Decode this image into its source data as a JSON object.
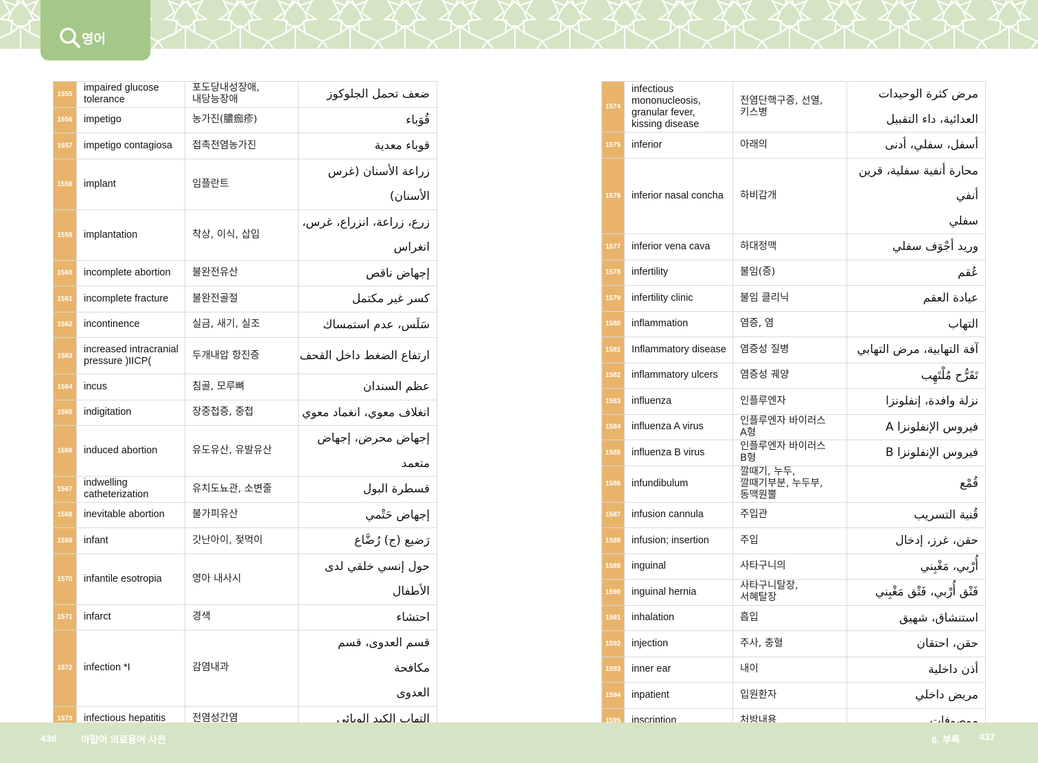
{
  "header": {
    "tab_label": "영어",
    "icon": "search-icon",
    "accent": "#a4c888",
    "pattern_bg": "#d4e4c4"
  },
  "colors": {
    "number_bg": "#e8b46c",
    "border": "#d9d9d9"
  },
  "left_table": [
    {
      "num": "1555",
      "en": "impaired glucose\ntolerance",
      "ko": "포도당내성장애,\n내당능장애",
      "ar": "ضعف تحمل الجلوكوز"
    },
    {
      "num": "1556",
      "en": "impetigo",
      "ko": "농가진(膿痂疹)",
      "ar": "قُوَباء"
    },
    {
      "num": "1557",
      "en": "impetigo contagiosa",
      "ko": "접촉전염농가진",
      "ar": "قوباء معدية"
    },
    {
      "num": "1558",
      "en": "implant",
      "ko": "임플란트",
      "ar": "زراعة الأسنان (غرس\nالأسنان)"
    },
    {
      "num": "1559",
      "en": "implantation",
      "ko": "착상, 이식, 삽입",
      "ar": "زرع، زراعة، انزراع، غرس،\nانغراس"
    },
    {
      "num": "1560",
      "en": "incomplete abortion",
      "ko": "불완전유산",
      "ar": "إجهاض ناقص"
    },
    {
      "num": "1561",
      "en": "incomplete fracture",
      "ko": "불완전골절",
      "ar": "كسر غير مكتمل"
    },
    {
      "num": "1562",
      "en": "incontinence",
      "ko": "실금, 새기, 실조",
      "ar": "سَلَس، عدم استمساك"
    },
    {
      "num": "1563",
      "en": "increased intracranial\npressure )IICP(",
      "ko": "두개내압 항진증",
      "ar": "ارتفاع الضغط داخل القحف"
    },
    {
      "num": "1564",
      "en": "incus",
      "ko": "침골, 모루뼈",
      "ar": "عظم السندان"
    },
    {
      "num": "1565",
      "en": "indigitation",
      "ko": "장중첩증, 중첩",
      "ar": "انغلاف معوي، انغماد معوي"
    },
    {
      "num": "1566",
      "en": "induced abortion",
      "ko": "유도유산, 유발유산",
      "ar": "إجهاض محرض، إجهاض\nمتعمد"
    },
    {
      "num": "1567",
      "en": "indwelling\ncatheterization",
      "ko": "유치도뇨관, 소변줄",
      "ar": "قسطرة البول"
    },
    {
      "num": "1568",
      "en": "inevitable abortion",
      "ko": "불가피유산",
      "ar": "إجهاض حَتْمي"
    },
    {
      "num": "1569",
      "en": "infant",
      "ko": "갓난아이, 젖먹이",
      "ar": "رَضيع (ج) رُضَّاع"
    },
    {
      "num": "1570",
      "en": "infantile esotropia",
      "ko": "영아 내사시",
      "ar": "حول إنسي خلقي لدى\nالأطفال"
    },
    {
      "num": "1571",
      "en": "infarct",
      "ko": "경색",
      "ar": "احتشاء"
    },
    {
      "num": "1572",
      "en": "infection *I",
      "ko": "감염내과",
      "ar": "قسم العدوى، قسم مكافحة\nالعدوى"
    },
    {
      "num": "1573",
      "en": "infectious hepatitis",
      "ko": "전염성간염",
      "ar": "التهاب الكبد الوبائي"
    }
  ],
  "right_table": [
    {
      "num": "1574",
      "en": "infectious\nmononucleosis,\ngranular fever,\nkissing disease",
      "ko": "전염단핵구증, 선열,\n키스병",
      "ar": "مرض كثرة الوحيدات\nالعدائية، داء التقبيل"
    },
    {
      "num": "1575",
      "en": "inferior",
      "ko": "아래의",
      "ar": "أسفل، سفلي، أدنى"
    },
    {
      "num": "1576",
      "en": "inferior nasal concha",
      "ko": "하비갑개",
      "ar": "محارة أنفية سفلية، قرين أنفي\nسفلي"
    },
    {
      "num": "1577",
      "en": "inferior vena cava",
      "ko": "하대정맥",
      "ar": "وريد أجْوَف سفلي"
    },
    {
      "num": "1578",
      "en": "infertility",
      "ko": "불임(증)",
      "ar": "عُقم"
    },
    {
      "num": "1579",
      "en": "infertility clinic",
      "ko": "불임 클리닉",
      "ar": "عيادة العقم"
    },
    {
      "num": "1580",
      "en": "inflammation",
      "ko": "염증, 염",
      "ar": "التهاب"
    },
    {
      "num": "1581",
      "en": "Inflammatory disease",
      "ko": "염증성 질병",
      "ar": "آفة التهابية، مرض التهابي"
    },
    {
      "num": "1582",
      "en": "inflammatory ulcers",
      "ko": "염증성 궤양",
      "ar": "تَقَرُّح مُلْتَهِب"
    },
    {
      "num": "1583",
      "en": "influenza",
      "ko": "인플루엔자",
      "ar": "نزلة وافدة، إنفلونزا"
    },
    {
      "num": "1584",
      "en": "influenza A virus",
      "ko": "인플루엔자 바이러스\nA형",
      "ar": "فيروس الإنفلونزا A"
    },
    {
      "num": "1585",
      "en": "influenza B virus",
      "ko": "인플루엔자 바이러스\nB형",
      "ar": "فيروس الإنفلونزا B"
    },
    {
      "num": "1586",
      "en": "infundibulum",
      "ko": "깔때기, 누두,\n깔때기부분, 누두부,\n동맥원뿔",
      "ar": "قُمْع"
    },
    {
      "num": "1587",
      "en": "infusion cannula",
      "ko": "주입관",
      "ar": "قُنية التسريب"
    },
    {
      "num": "1588",
      "en": "infusion; insertion",
      "ko": "주입",
      "ar": "حقن، غرز، إدخال"
    },
    {
      "num": "1589",
      "en": "inguinal",
      "ko": "사타구니의",
      "ar": "أُرْبي، مَغْبِني"
    },
    {
      "num": "1590",
      "en": "inguinal hernia",
      "ko": "사타구니탈장,\n서혜탈장",
      "ar": "فَتْق أُرْبي، فَتْق مَغْبِني"
    },
    {
      "num": "1591",
      "en": "inhalation",
      "ko": "흡입",
      "ar": "استنشاق، شهيق"
    },
    {
      "num": "1592",
      "en": "injection",
      "ko": "주사, 충혈",
      "ar": "حقن، احتقان"
    },
    {
      "num": "1593",
      "en": "inner ear",
      "ko": "내이",
      "ar": "أذن داخلية"
    },
    {
      "num": "1594",
      "en": "inpatient",
      "ko": "입원환자",
      "ar": "مريض داخلي"
    },
    {
      "num": "1595",
      "en": "inscription",
      "ko": "처방내용",
      "ar": "موصوفات"
    }
  ],
  "footer": {
    "left_page": "436",
    "left_title": "아랍어 의료용어 사전",
    "right_title": "6. 부록",
    "right_page": "437"
  }
}
